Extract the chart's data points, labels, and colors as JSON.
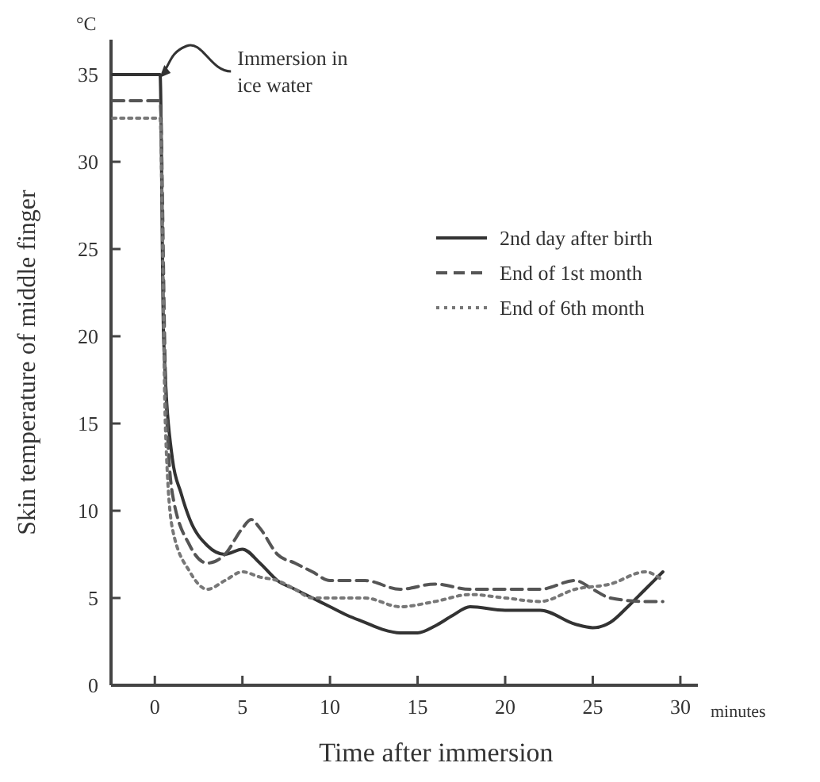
{
  "chart_data": {
    "type": "line",
    "xlabel": "Time after immersion",
    "ylabel": "Skin temperature of middle finger",
    "annotations": [
      {
        "text": "Immersion in ice water",
        "x": 0,
        "y": 35
      },
      "°C",
      "minutes"
    ],
    "xlim": [
      -2.5,
      31
    ],
    "ylim": [
      0,
      37
    ],
    "xticks": [
      0,
      5,
      10,
      15,
      20,
      25,
      30
    ],
    "yticks": [
      0,
      5,
      10,
      15,
      20,
      25,
      30,
      35
    ],
    "grid": false,
    "legend": "top right",
    "marker": "none",
    "series": [
      {
        "name": "2nd day after birth",
        "color": "#333333",
        "line_style": "solid",
        "x": [
          -2.4,
          0.3,
          0.5,
          1,
          1.5,
          2,
          3,
          4,
          5,
          6,
          7,
          8,
          9,
          10,
          11,
          12,
          13,
          14,
          15,
          16,
          17,
          18,
          20,
          22,
          24,
          25,
          26,
          27,
          28,
          29
        ],
        "values": [
          35,
          35,
          20,
          13,
          11,
          9.5,
          8,
          7.5,
          7.8,
          7,
          6,
          5.5,
          5,
          4.5,
          4,
          3.6,
          3.2,
          3,
          3,
          3.4,
          4,
          4.5,
          4.3,
          4.3,
          3.5,
          3.3,
          3.6,
          4.5,
          5.5,
          6.5
        ]
      },
      {
        "name": "End of 1st month",
        "color": "#555555",
        "line_style": "dashed",
        "x": [
          -2.4,
          0.3,
          0.6,
          1,
          2,
          3,
          4,
          5,
          5.5,
          6,
          7,
          8,
          9,
          10,
          12,
          14,
          16,
          18,
          20,
          22,
          24,
          25,
          26,
          28,
          29
        ],
        "values": [
          33.5,
          33.5,
          18,
          11,
          8,
          7,
          7.5,
          9,
          9.5,
          9,
          7.5,
          7,
          6.5,
          6,
          6,
          5.5,
          5.8,
          5.5,
          5.5,
          5.5,
          6,
          5.5,
          5,
          4.8,
          4.8
        ]
      },
      {
        "name": "End of 6th month",
        "color": "#777777",
        "line_style": "dotted",
        "x": [
          -2.4,
          0.3,
          0.6,
          1,
          2,
          3,
          4,
          5,
          6,
          7,
          8,
          9,
          10,
          12,
          14,
          16,
          18,
          20,
          22,
          24,
          26,
          28,
          29
        ],
        "values": [
          32.5,
          32.5,
          15,
          9,
          6.5,
          5.5,
          6,
          6.5,
          6.2,
          6,
          5.5,
          5,
          5,
          5,
          4.5,
          4.8,
          5.2,
          5,
          4.8,
          5.5,
          5.8,
          6.5,
          6
        ]
      }
    ]
  }
}
